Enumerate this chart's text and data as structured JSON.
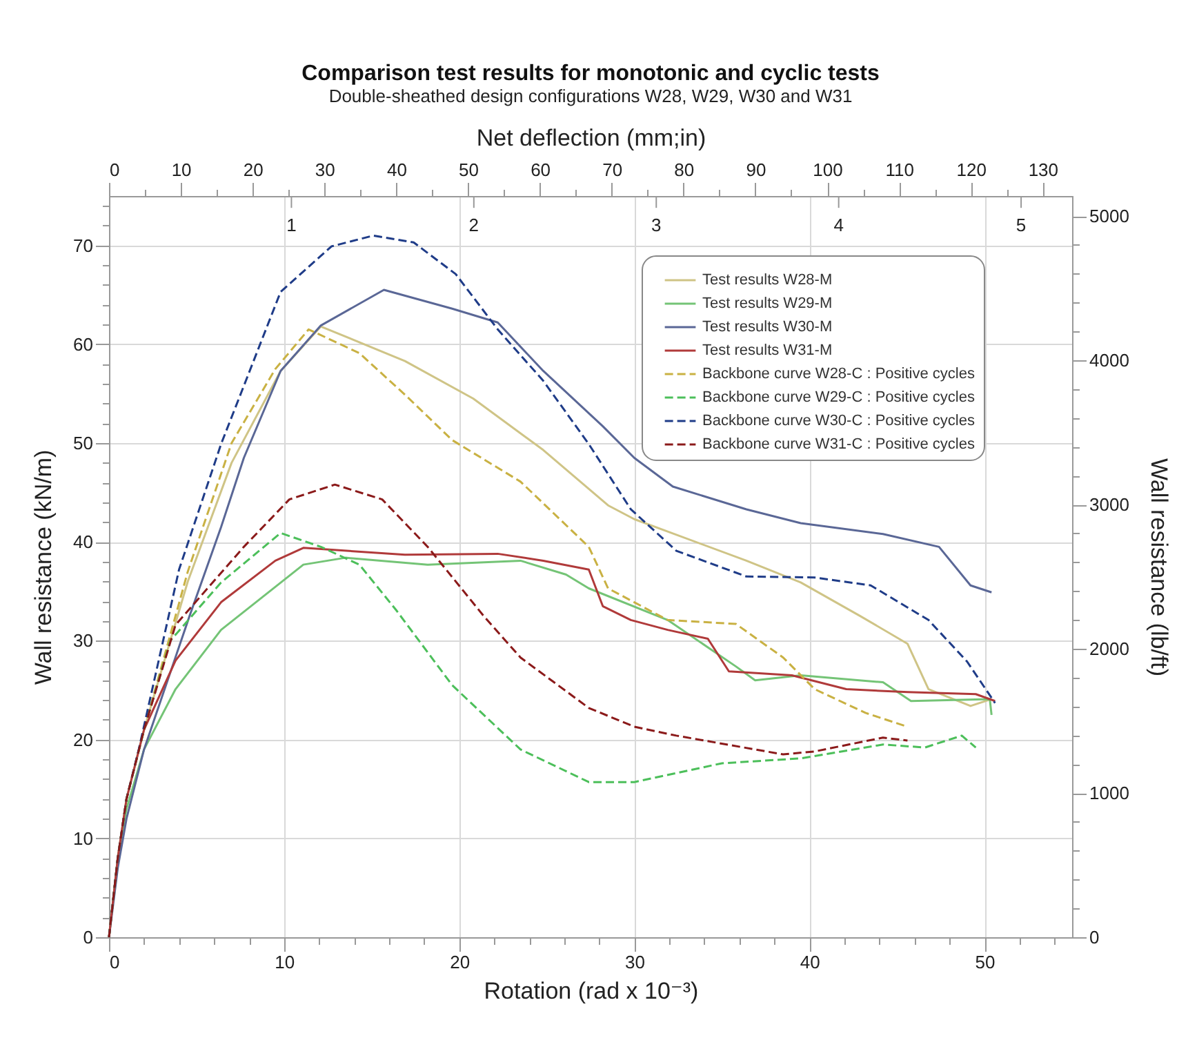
{
  "chart_data": {
    "type": "line",
    "title": "Comparison test results for monotonic and cyclic tests",
    "subtitle": "Double-sheathed design configurations W28, W29, W30 and W31",
    "xlabel": "Rotation (rad x 10⁻³)",
    "ylabel": "Wall resistance (kN/m)",
    "y2label": "Wall resistance (lb/ft)",
    "x2label": "Net deflection (mm;in)",
    "xlim": [
      0,
      55
    ],
    "ylim": [
      0,
      75
    ],
    "x2lim": [
      0,
      134.1
    ],
    "annotations": [
      "1",
      "2",
      "3",
      "4",
      "5"
    ],
    "y2lim": [
      0,
      5139
    ],
    "xticks": [
      0,
      {
        "value": 2,
        "label": null
      },
      {
        "value": 4,
        "label": null
      },
      {
        "value": 6,
        "label": null
      },
      {
        "value": 8,
        "label": null
      },
      10,
      {
        "value": 12,
        "label": null
      },
      {
        "value": 14,
        "label": null
      },
      {
        "value": 16,
        "label": null
      },
      {
        "value": 18,
        "label": null
      },
      20,
      {
        "value": 22,
        "label": null
      },
      {
        "value": 24,
        "label": null
      },
      {
        "value": 26,
        "label": null
      },
      {
        "value": 28,
        "label": null
      },
      30,
      {
        "value": 32,
        "label": null
      },
      {
        "value": 34,
        "label": null
      },
      {
        "value": 36,
        "label": null
      },
      {
        "value": 38,
        "label": null
      },
      40,
      {
        "value": 42,
        "label": null
      },
      {
        "value": 44,
        "label": null
      },
      {
        "value": 46,
        "label": null
      },
      {
        "value": 48,
        "label": null
      },
      50,
      {
        "value": 52,
        "label": null
      },
      {
        "value": 54,
        "label": null
      }
    ],
    "yticks": [
      0,
      {
        "value": 2,
        "label": null
      },
      {
        "value": 4,
        "label": null
      },
      {
        "value": 6,
        "label": null
      },
      {
        "value": 8,
        "label": null
      },
      10,
      {
        "value": 12,
        "label": null
      },
      {
        "value": 14,
        "label": null
      },
      {
        "value": 16,
        "label": null
      },
      {
        "value": 18,
        "label": null
      },
      20,
      {
        "value": 22,
        "label": null
      },
      {
        "value": 24,
        "label": null
      },
      {
        "value": 26,
        "label": null
      },
      {
        "value": 28,
        "label": null
      },
      30,
      {
        "value": 32,
        "label": null
      },
      {
        "value": 34,
        "label": null
      },
      {
        "value": 36,
        "label": null
      },
      {
        "value": 38,
        "label": null
      },
      40,
      {
        "value": 42,
        "label": null
      },
      {
        "value": 44,
        "label": null
      },
      {
        "value": 46,
        "label": null
      },
      {
        "value": 48,
        "label": null
      },
      50,
      {
        "value": 52,
        "label": null
      },
      {
        "value": 54,
        "label": null
      },
      {
        "value": 56,
        "label": null
      },
      {
        "value": 58,
        "label": null
      },
      60,
      {
        "value": 62,
        "label": null
      },
      {
        "value": 64,
        "label": null
      },
      {
        "value": 66,
        "label": null
      },
      {
        "value": 68,
        "label": null
      },
      70,
      {
        "value": 72,
        "label": null
      },
      {
        "value": 74,
        "label": null
      }
    ],
    "x2ticks": [
      0,
      {
        "value": 5,
        "label": null
      },
      10,
      {
        "value": 15,
        "label": null
      },
      20,
      {
        "value": 25,
        "label": null
      },
      30,
      {
        "value": 35,
        "label": null
      },
      40,
      {
        "value": 45,
        "label": null
      },
      50,
      {
        "value": 55,
        "label": null
      },
      60,
      {
        "value": 65,
        "label": null
      },
      70,
      {
        "value": 75,
        "label": null
      },
      80,
      {
        "value": 85,
        "label": null
      },
      90,
      {
        "value": 95,
        "label": null
      },
      100,
      {
        "value": 105,
        "label": null
      },
      110,
      {
        "value": 115,
        "label": null
      },
      120,
      {
        "value": 125,
        "label": null
      },
      130
    ],
    "y2ticks": [
      0,
      {
        "value": 200,
        "label": null
      },
      {
        "value": 400,
        "label": null
      },
      {
        "value": 600,
        "label": null
      },
      {
        "value": 800,
        "label": null
      },
      1000,
      {
        "value": 1200,
        "label": null
      },
      {
        "value": 1400,
        "label": null
      },
      {
        "value": 1600,
        "label": null
      },
      {
        "value": 1800,
        "label": null
      },
      2000,
      {
        "value": 2200,
        "label": null
      },
      {
        "value": 2400,
        "label": null
      },
      {
        "value": 2600,
        "label": null
      },
      {
        "value": 2800,
        "label": null
      },
      3000,
      {
        "value": 3200,
        "label": null
      },
      {
        "value": 3400,
        "label": null
      },
      {
        "value": 3600,
        "label": null
      },
      {
        "value": 3800,
        "label": null
      },
      4000,
      {
        "value": 4200,
        "label": null
      },
      {
        "value": 4400,
        "label": null
      },
      {
        "value": 4600,
        "label": null
      },
      {
        "value": 4800,
        "label": null
      },
      5000
    ],
    "grid": true,
    "legend": "top right",
    "series": [
      {
        "name": "Test results W28-M",
        "color": "#cfc486",
        "line_style": "solid",
        "x": [
          0,
          0.5,
          1,
          2,
          4.5,
          7,
          9.8,
          12.1,
          16.9,
          20.8,
          24.8,
          28.5,
          30,
          36.4,
          39.5,
          42.9,
          45.6,
          46.8,
          49.2,
          50.4
        ],
        "values": [
          0,
          8,
          14,
          21,
          36,
          48,
          57.3,
          61.8,
          58.3,
          54.5,
          49.3,
          43.7,
          42.3,
          38.1,
          35.9,
          32.5,
          29.7,
          25.1,
          23.4,
          24.1
        ]
      },
      {
        "name": "Test results W29-M",
        "color": "#74c476",
        "line_style": "solid",
        "x": [
          0,
          0.5,
          1,
          2,
          3.8,
          6.4,
          11.1,
          13.5,
          18.2,
          23.5,
          26.1,
          27.4,
          31.9,
          35.8,
          36.9,
          39.5,
          44.2,
          45.8,
          50.3,
          50.4
        ],
        "values": [
          0,
          8,
          13,
          19,
          25.1,
          31.1,
          37.7,
          38.4,
          37.7,
          38.1,
          36.7,
          35.3,
          32.1,
          27.4,
          26,
          26.5,
          25.8,
          23.9,
          24.1,
          22.5
        ]
      },
      {
        "name": "Test results W30-M",
        "color": "#5a6796",
        "line_style": "solid",
        "x": [
          0,
          0.5,
          1,
          2,
          4.6,
          6.4,
          7.7,
          9.8,
          12.1,
          15.7,
          19.6,
          22.2,
          24.8,
          28.2,
          30,
          32.2,
          36.4,
          39.5,
          44.2,
          47.4,
          49.2,
          50.4
        ],
        "values": [
          0,
          7,
          12,
          19,
          32.5,
          41.5,
          48.5,
          57.3,
          61.9,
          65.5,
          63.6,
          62.2,
          57.3,
          51.7,
          48.5,
          45.6,
          43.3,
          41.9,
          40.8,
          39.5,
          35.6,
          34.9
        ]
      },
      {
        "name": "Test results W31-M",
        "color": "#b03a3a",
        "line_style": "solid",
        "x": [
          0,
          0.5,
          1,
          2,
          3.8,
          6.4,
          9.5,
          11.1,
          16.9,
          22.2,
          24.8,
          27.4,
          28.2,
          29.8,
          31.9,
          34.2,
          35.4,
          39,
          42.1,
          45.6,
          49.5,
          50.6
        ],
        "values": [
          0,
          8,
          14,
          21,
          28,
          33.9,
          38.1,
          39.4,
          38.7,
          38.8,
          38.1,
          37.2,
          33.5,
          32.1,
          31.1,
          30.2,
          26.9,
          26.5,
          25.1,
          24.8,
          24.6,
          23.9
        ]
      },
      {
        "name": "Backbone curve W28-C : Positive cycles",
        "color": "#c9b143",
        "line_style": "dashed",
        "x": [
          0,
          0.5,
          1,
          2,
          4.5,
          7,
          9.5,
          11.4,
          14.3,
          16.9,
          19.6,
          23.5,
          27.4,
          28.5,
          31.9,
          35.8,
          38.5,
          40.3,
          43.2,
          45.6
        ],
        "values": [
          0,
          8,
          14,
          21,
          37,
          50,
          57.5,
          61.5,
          59.1,
          54.9,
          50.3,
          46.1,
          39.5,
          35.3,
          32.1,
          31.7,
          28.3,
          25.1,
          22.7,
          21.3
        ]
      },
      {
        "name": "Backbone curve W29-C : Positive cycles",
        "color": "#4cbf5a",
        "line_style": "dashed",
        "x": [
          0,
          0.5,
          1,
          2,
          3.5,
          6.4,
          9.8,
          12.1,
          14.3,
          16.4,
          19.6,
          23.5,
          27.4,
          30,
          35,
          39.5,
          44.2,
          46.6,
          48.7,
          49.5
        ],
        "values": [
          0,
          8,
          14,
          21,
          30,
          35.9,
          40.9,
          39.5,
          37.7,
          33.1,
          25.5,
          19,
          15.7,
          15.7,
          17.6,
          18.1,
          19.5,
          19.2,
          20.4,
          19.2
        ]
      },
      {
        "name": "Backbone curve W30-C : Positive cycles",
        "color": "#1f3c88",
        "line_style": "dashed",
        "x": [
          0,
          0.5,
          1,
          1.7,
          4,
          6.4,
          9.8,
          12.7,
          15.1,
          17.4,
          19.8,
          22.2,
          24.8,
          27.4,
          29.8,
          32.4,
          36.4,
          40.3,
          43.5,
          46.8,
          49,
          50.6
        ],
        "values": [
          0,
          8,
          14,
          19,
          37.2,
          49.9,
          65.3,
          69.9,
          71,
          70.3,
          67.1,
          61.5,
          56.3,
          49.9,
          43.3,
          39.1,
          36.5,
          36.4,
          35.6,
          32.1,
          27.9,
          23.7
        ]
      },
      {
        "name": "Backbone curve W31-C : Positive cycles",
        "color": "#8b1a1a",
        "line_style": "dashed",
        "x": [
          0,
          0.5,
          1,
          2,
          3.8,
          7.7,
          10.3,
          12.9,
          15.6,
          18.2,
          21.4,
          23.5,
          27.4,
          30,
          32.4,
          38.5,
          40.3,
          44.2,
          45.6
        ],
        "values": [
          0,
          8,
          14,
          21,
          31.6,
          39.5,
          44.3,
          45.8,
          44.3,
          39.5,
          32.5,
          28.3,
          23.2,
          21.3,
          20.4,
          18.5,
          18.8,
          20.2,
          19.9
        ]
      }
    ]
  }
}
